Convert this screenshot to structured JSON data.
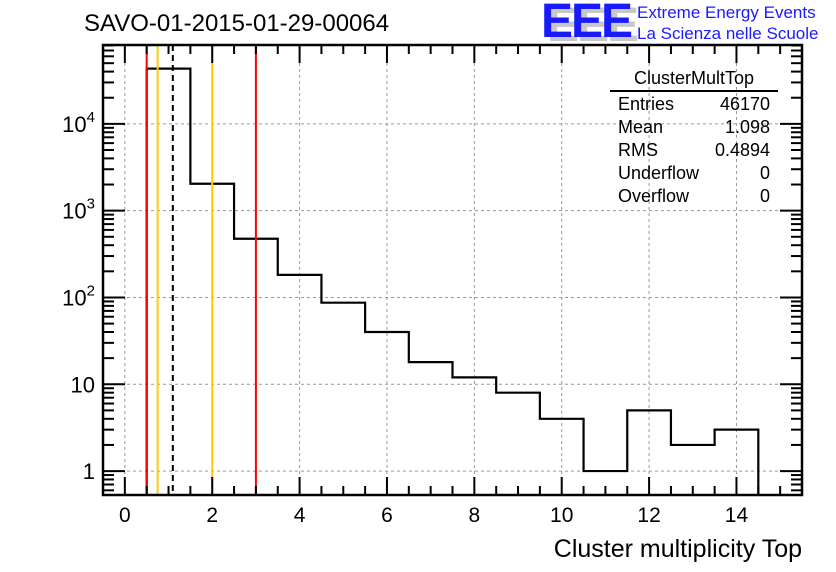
{
  "chart_data": {
    "type": "bar",
    "style": "step-histogram",
    "title": "SAVO-01-2015-01-29-00064",
    "xlabel": "Cluster multiplicity Top",
    "ylabel": "",
    "xlim": [
      -0.5,
      15.5
    ],
    "ylim": [
      0.53,
      81000
    ],
    "yscale": "log",
    "grid": true,
    "bin_edges": [
      0.5,
      1.5,
      2.5,
      3.5,
      4.5,
      5.5,
      6.5,
      7.5,
      8.5,
      9.5,
      10.5,
      11.5,
      12.5,
      13.5,
      14.5
    ],
    "categories": [
      "1",
      "2",
      "3",
      "4",
      "5",
      "6",
      "7",
      "8",
      "9",
      "10",
      "11",
      "12",
      "13",
      "14"
    ],
    "values": [
      43300,
      2040,
      475,
      182,
      87,
      40,
      18,
      12,
      8,
      4,
      1,
      5,
      2,
      3
    ],
    "x_ticks": [
      "0",
      "2",
      "4",
      "6",
      "8",
      "10",
      "12",
      "14"
    ],
    "y_ticks": [
      {
        "value": 1,
        "base": "1",
        "exp": ""
      },
      {
        "value": 10,
        "base": "10",
        "exp": ""
      },
      {
        "value": 100,
        "base": "10",
        "exp": "2"
      },
      {
        "value": 1000,
        "base": "10",
        "exp": "3"
      },
      {
        "value": 10000,
        "base": "10",
        "exp": "4"
      }
    ],
    "vertical_lines": [
      {
        "x": 0.5,
        "color": "#ff0000",
        "style": "solid"
      },
      {
        "x": 0.75,
        "color": "#ffcc00",
        "style": "solid"
      },
      {
        "x": 1.098,
        "color": "#000000",
        "style": "dashed"
      },
      {
        "x": 2.0,
        "color": "#ffcc00",
        "style": "solid"
      },
      {
        "x": 3.0,
        "color": "#ff0000",
        "style": "solid"
      }
    ],
    "stats": {
      "name": "ClusterMultTop",
      "rows": [
        {
          "label": "Entries",
          "value": "46170"
        },
        {
          "label": "Mean",
          "value": "1.098"
        },
        {
          "label": "RMS",
          "value": "0.4894"
        },
        {
          "label": "Underflow",
          "value": "0"
        },
        {
          "label": "Overflow",
          "value": "0"
        }
      ]
    }
  },
  "logo": {
    "letters": "EEE",
    "line1": "Extreme Energy Events",
    "line2": "La Scienza nelle Scuole"
  }
}
